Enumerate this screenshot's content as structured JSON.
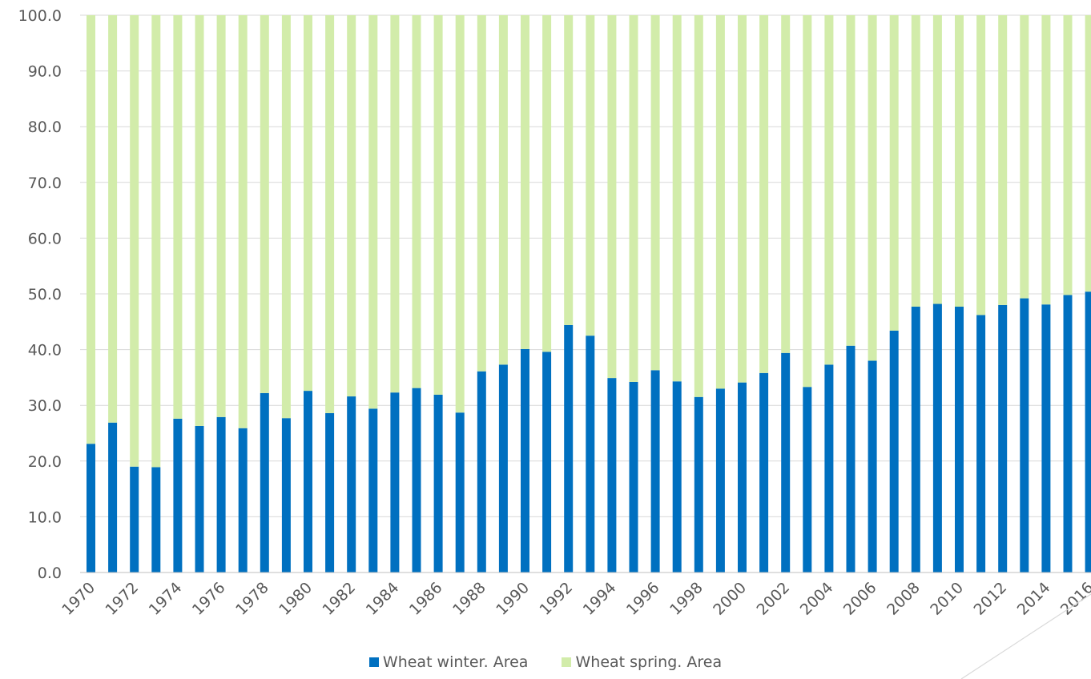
{
  "chart_data": {
    "type": "bar",
    "stacked": true,
    "ylim": [
      0,
      100
    ],
    "yticks": [
      "0.0",
      "10.0",
      "20.0",
      "30.0",
      "40.0",
      "50.0",
      "60.0",
      "70.0",
      "80.0",
      "90.0",
      "100.0"
    ],
    "categories": [
      1970,
      1971,
      1972,
      1973,
      1974,
      1975,
      1976,
      1977,
      1978,
      1979,
      1980,
      1981,
      1982,
      1983,
      1984,
      1985,
      1986,
      1987,
      1988,
      1989,
      1990,
      1991,
      1992,
      1993,
      1994,
      1995,
      1996,
      1997,
      1998,
      1999,
      2000,
      2001,
      2002,
      2003,
      2004,
      2005,
      2006,
      2007,
      2008,
      2009,
      2010,
      2011,
      2012,
      2013,
      2014,
      2015,
      2016
    ],
    "xtick_labels": [
      "1970",
      "1972",
      "1974",
      "1976",
      "1978",
      "1980",
      "1982",
      "1984",
      "1986",
      "1988",
      "1990",
      "1992",
      "1994",
      "1996",
      "1998",
      "2000",
      "2002",
      "2004",
      "2006",
      "2008",
      "2010",
      "2012",
      "2014",
      "2016"
    ],
    "series": [
      {
        "name": "Wheat winter. Area",
        "color": "#0070c0",
        "values": [
          23.1,
          26.9,
          19.0,
          18.9,
          27.6,
          26.3,
          27.9,
          25.9,
          32.2,
          27.7,
          32.6,
          28.6,
          31.6,
          29.4,
          32.3,
          33.1,
          31.9,
          28.7,
          36.1,
          37.3,
          40.1,
          39.6,
          44.4,
          42.5,
          34.9,
          34.2,
          36.3,
          34.3,
          31.5,
          33.0,
          34.1,
          35.8,
          39.4,
          33.3,
          37.3,
          40.7,
          38.0,
          43.4,
          47.7,
          48.2,
          47.7,
          46.2,
          48.0,
          49.2,
          48.1,
          49.8,
          50.4
        ]
      },
      {
        "name": "Wheat spring. Area",
        "color": "#d2ecaa",
        "values": [
          76.9,
          73.1,
          81.0,
          81.1,
          72.4,
          73.7,
          72.1,
          74.1,
          67.8,
          72.3,
          67.4,
          71.4,
          68.4,
          70.6,
          67.7,
          66.9,
          68.1,
          71.3,
          63.9,
          62.7,
          59.9,
          60.4,
          55.6,
          57.5,
          65.1,
          65.8,
          63.7,
          65.7,
          68.5,
          67.0,
          65.9,
          64.2,
          60.6,
          66.7,
          62.7,
          59.3,
          62.0,
          56.6,
          52.3,
          51.8,
          52.3,
          53.8,
          52.0,
          50.8,
          51.9,
          50.2,
          49.6
        ]
      }
    ],
    "legend_position": "bottom",
    "grid": true
  }
}
